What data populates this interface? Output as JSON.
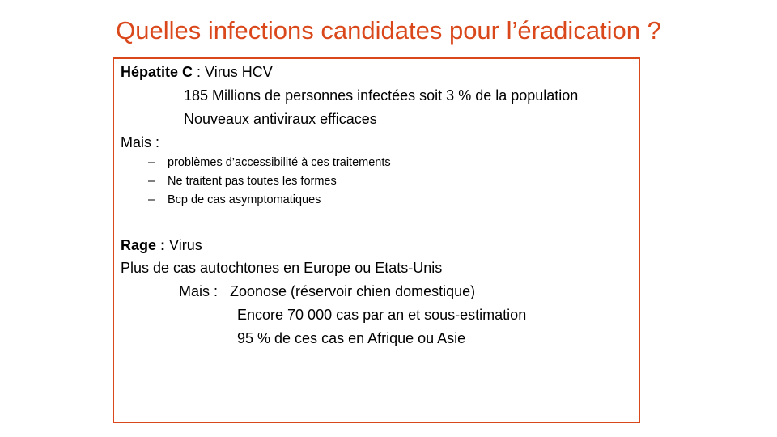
{
  "slide": {
    "title": "Quelles infections candidates pour l’éradication ?"
  },
  "hepatite": {
    "heading_bold": "Hépatite C",
    "heading_rest": " : Virus HCV",
    "lines": [
      "185 Millions  de personnes infectées soit 3 % de la population",
      "Nouveaux  antiviraux  efficaces"
    ],
    "mais_label": "Mais :",
    "bullet_dash": "–",
    "bullets": [
      "problèmes d’accessibilité à ces traitements",
      "Ne traitent pas toutes les formes",
      "Bcp de cas asymptomatiques"
    ]
  },
  "rage": {
    "heading_bold": "Rage :",
    "heading_rest": " Virus",
    "line1": "Plus de cas autochtones en Europe ou Etats-Unis",
    "mais_line": "Mais :   Zoonose (réservoir chien domestique)",
    "lines": [
      "Encore 70 000 cas par an et sous-estimation",
      "95 % de ces cas en Afrique ou Asie"
    ]
  },
  "colors": {
    "accent": "#d9471a",
    "text": "#000000",
    "background": "#ffffff"
  }
}
